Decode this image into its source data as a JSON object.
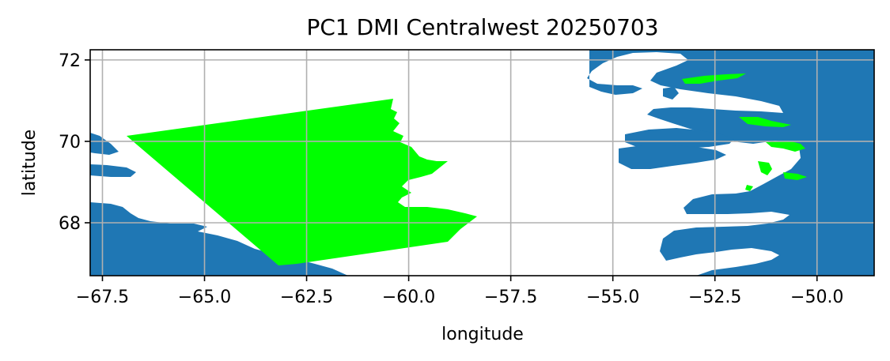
{
  "title": "PC1 DMI Centralwest 20250703",
  "map": {
    "xlabel": "longitude",
    "ylabel": "latitude",
    "xlim": [
      -67.8,
      -48.6
    ],
    "ylim": [
      66.7,
      72.25
    ],
    "x_ticks": [
      -67.5,
      -65.0,
      -62.5,
      -60.0,
      -57.5,
      -55.0,
      -52.5,
      -50.0
    ],
    "x_tick_labels": [
      "−67.5",
      "−65.0",
      "−62.5",
      "−60.0",
      "−57.5",
      "−55.0",
      "−52.5",
      "−50.0"
    ],
    "y_ticks": [
      68,
      70,
      72
    ],
    "y_tick_labels": [
      "68",
      "70",
      "72"
    ],
    "grid": true,
    "colors": {
      "land": "#1f77b4",
      "swath": "#00ff00",
      "grid": "#b0b0b0"
    }
  }
}
